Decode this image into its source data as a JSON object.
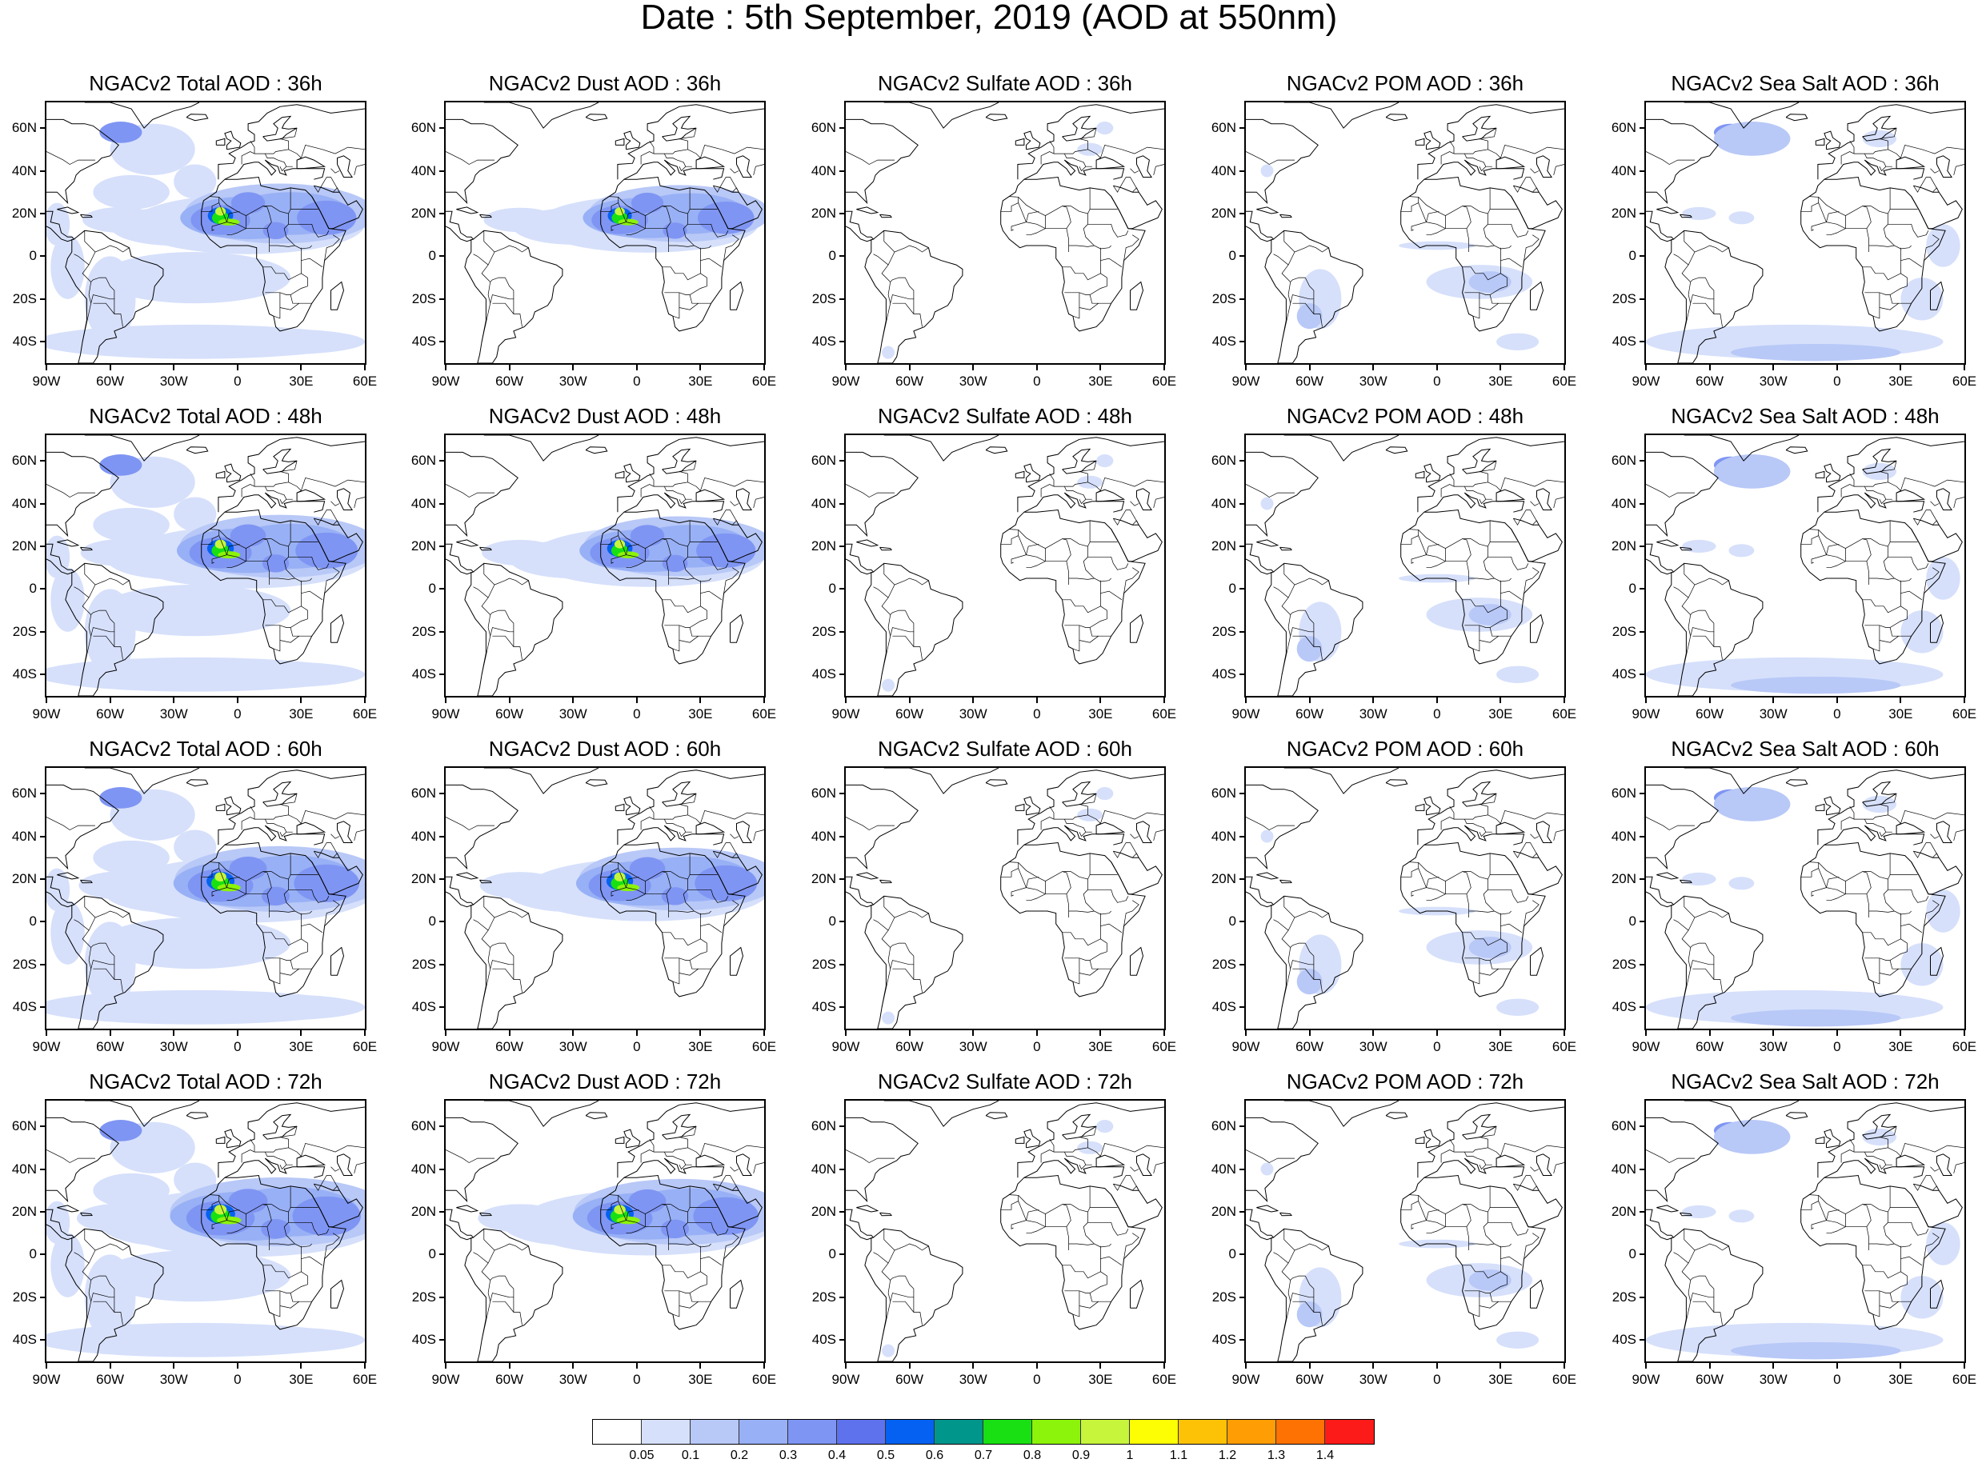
{
  "title": "Date : 5th September, 2019 (AOD at 550nm)",
  "panel_titles": [
    [
      "NGACv2 Total AOD : 36h",
      "NGACv2 Dust AOD : 36h",
      "NGACv2 Sulfate AOD : 36h",
      "NGACv2 POM AOD : 36h",
      "NGACv2 Sea Salt AOD : 36h"
    ],
    [
      "NGACv2 Total AOD : 48h",
      "NGACv2 Dust AOD : 48h",
      "NGACv2 Sulfate AOD : 48h",
      "NGACv2 POM AOD : 48h",
      "NGACv2 Sea Salt AOD : 48h"
    ],
    [
      "NGACv2 Total AOD : 60h",
      "NGACv2 Dust AOD : 60h",
      "NGACv2 Sulfate AOD : 60h",
      "NGACv2 POM AOD : 60h",
      "NGACv2 Sea Salt AOD : 60h"
    ],
    [
      "NGACv2 Total AOD : 72h",
      "NGACv2 Dust AOD : 72h",
      "NGACv2 Sulfate AOD : 72h",
      "NGACv2 POM AOD : 72h",
      "NGACv2 Sea Salt  AOD : 72h"
    ]
  ],
  "lat_ticks": [
    "60N",
    "40N",
    "20N",
    "0",
    "20S",
    "40S"
  ],
  "lon_ticks": [
    "90W",
    "60W",
    "30W",
    "0",
    "30E",
    "60E"
  ],
  "colorbar": {
    "colors": [
      "#ffffff",
      "#d6e0fb",
      "#b8c8f7",
      "#98b0f5",
      "#7f95f3",
      "#5f72ee",
      "#0561f1",
      "#00968c",
      "#18e012",
      "#8cf30a",
      "#c6f53c",
      "#fdfd04",
      "#fdc205",
      "#fe9d04",
      "#fe7103",
      "#fd1b1a"
    ],
    "labels": [
      "0.05",
      "0.1",
      "0.2",
      "0.3",
      "0.4",
      "0.5",
      "0.6",
      "0.7",
      "0.8",
      "0.9",
      "1",
      "1.1",
      "1.2",
      "1.3",
      "1.4"
    ]
  }
}
